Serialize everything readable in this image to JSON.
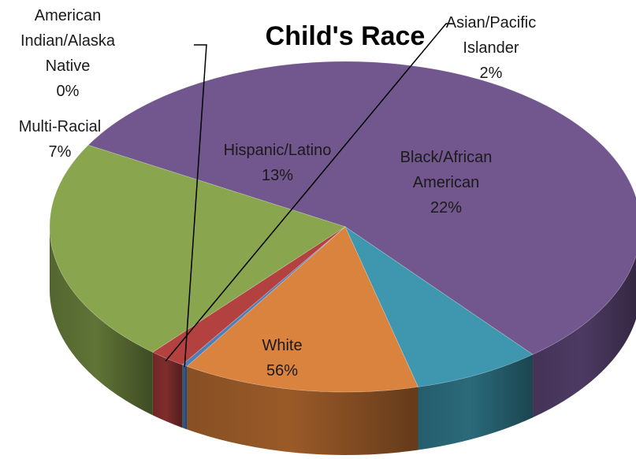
{
  "chart_data": {
    "type": "pie",
    "style": "3d",
    "title": "Child's Race",
    "legend": "none",
    "slices": [
      {
        "name": "White",
        "value": 56,
        "color": "#72578e",
        "side_color": "#4d3a62"
      },
      {
        "name": "Multi-Racial",
        "value": 7,
        "color": "#3e97ae",
        "side_color": "#2a6a7a"
      },
      {
        "name": "Hispanic/Latino",
        "value": 13,
        "color": "#d9833e",
        "side_color": "#9a5a28"
      },
      {
        "name": "American Indian/Alaska Native",
        "value": 0.3,
        "color": "#4e7fb8",
        "side_color": "#365a84"
      },
      {
        "name": "Asian/Pacific Islander",
        "value": 2,
        "color": "#b3413f",
        "side_color": "#7e2d2c"
      },
      {
        "name": "Black/African American",
        "value": 22,
        "color": "#89a54e",
        "side_color": "#5f7436"
      }
    ],
    "data_labels": [
      {
        "lines": [
          "White",
          "56%"
        ],
        "slice": "White"
      },
      {
        "lines": [
          "Multi-Racial",
          "7%"
        ],
        "slice": "Multi-Racial"
      },
      {
        "lines": [
          "Hispanic/Latino",
          "13%"
        ],
        "slice": "Hispanic/Latino"
      },
      {
        "lines": [
          "American",
          "Indian/Alaska",
          "Native",
          "0%"
        ],
        "slice": "American Indian/Alaska Native"
      },
      {
        "lines": [
          "Asian/Pacific",
          "Islander",
          "2%"
        ],
        "slice": "Asian/Pacific Islander"
      },
      {
        "lines": [
          "Black/African",
          "American",
          "22%"
        ],
        "slice": "Black/African American"
      }
    ]
  }
}
